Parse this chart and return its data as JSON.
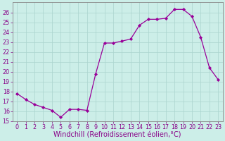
{
  "x": [
    0,
    1,
    2,
    3,
    4,
    5,
    6,
    7,
    8,
    9,
    10,
    11,
    12,
    13,
    14,
    15,
    16,
    17,
    18,
    19,
    20,
    21,
    22,
    23
  ],
  "y": [
    17.8,
    17.2,
    16.7,
    16.4,
    16.1,
    15.4,
    16.2,
    16.2,
    16.1,
    19.8,
    22.9,
    22.9,
    23.1,
    23.3,
    24.7,
    25.3,
    25.3,
    25.4,
    26.3,
    26.3,
    25.6,
    23.5,
    20.4,
    19.2
  ],
  "line_color": "#990099",
  "marker": "D",
  "marker_size": 2.0,
  "bg_color": "#cceee8",
  "grid_color": "#aad4ce",
  "xlabel": "Windchill (Refroidissement éolien,°C)",
  "xlabel_fontsize": 7,
  "ylim": [
    15,
    27
  ],
  "xlim": [
    -0.5,
    23.5
  ],
  "yticks": [
    15,
    16,
    17,
    18,
    19,
    20,
    21,
    22,
    23,
    24,
    25,
    26
  ],
  "xticks": [
    0,
    1,
    2,
    3,
    4,
    5,
    6,
    7,
    8,
    9,
    10,
    11,
    12,
    13,
    14,
    15,
    16,
    17,
    18,
    19,
    20,
    21,
    22,
    23
  ],
  "tick_label_color": "#880088",
  "tick_fontsize": 5.8,
  "spine_color": "#888888"
}
